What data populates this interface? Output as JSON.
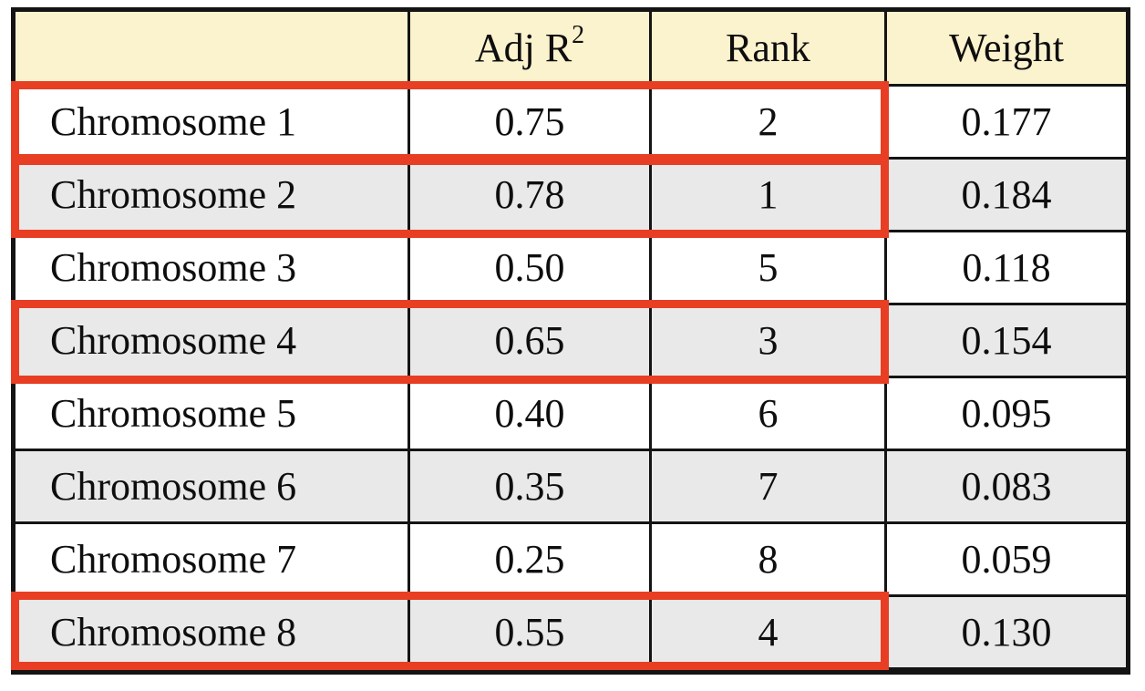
{
  "table": {
    "header": {
      "empty": "",
      "adj_r_base": "Adj R",
      "adj_r_sup": "2",
      "rank": "Rank",
      "weight": "Weight"
    },
    "rows": [
      {
        "label": "Chromosome 1",
        "adj_r2": "0.75",
        "rank": "2",
        "weight": "0.177"
      },
      {
        "label": "Chromosome 2",
        "adj_r2": "0.78",
        "rank": "1",
        "weight": "0.184"
      },
      {
        "label": "Chromosome 3",
        "adj_r2": "0.50",
        "rank": "5",
        "weight": "0.118"
      },
      {
        "label": "Chromosome 4",
        "adj_r2": "0.65",
        "rank": "3",
        "weight": "0.154"
      },
      {
        "label": "Chromosome 5",
        "adj_r2": "0.40",
        "rank": "6",
        "weight": "0.095"
      },
      {
        "label": "Chromosome 6",
        "adj_r2": "0.35",
        "rank": "7",
        "weight": "0.083"
      },
      {
        "label": "Chromosome 7",
        "adj_r2": "0.25",
        "rank": "8",
        "weight": "0.059"
      },
      {
        "label": "Chromosome 8",
        "adj_r2": "0.55",
        "rank": "4",
        "weight": "0.130"
      }
    ],
    "highlighted_rows": [
      1,
      2,
      4,
      8
    ]
  },
  "colors": {
    "header_bg": "#FBF2CE",
    "alt_row_bg": "#E9E9E9",
    "highlight_border": "#E83E23",
    "grid_line": "#141414"
  },
  "chart_data": {
    "type": "table",
    "title": "",
    "columns": [
      "",
      "Adj R^2",
      "Rank",
      "Weight"
    ],
    "rows": [
      [
        "Chromosome 1",
        0.75,
        2,
        0.177
      ],
      [
        "Chromosome 2",
        0.78,
        1,
        0.184
      ],
      [
        "Chromosome 3",
        0.5,
        5,
        0.118
      ],
      [
        "Chromosome 4",
        0.65,
        3,
        0.154
      ],
      [
        "Chromosome 5",
        0.4,
        6,
        0.095
      ],
      [
        "Chromosome 6",
        0.35,
        7,
        0.083
      ],
      [
        "Chromosome 7",
        0.25,
        8,
        0.059
      ],
      [
        "Chromosome 8",
        0.55,
        4,
        0.13
      ]
    ],
    "highlighted_rows": [
      "Chromosome 1",
      "Chromosome 2",
      "Chromosome 4",
      "Chromosome 8"
    ],
    "layout_hints": {
      "alternating_row_shading": true,
      "header_shaded": true,
      "highlight_spans_columns": [
        "row label",
        "Adj R^2",
        "Rank"
      ]
    }
  }
}
